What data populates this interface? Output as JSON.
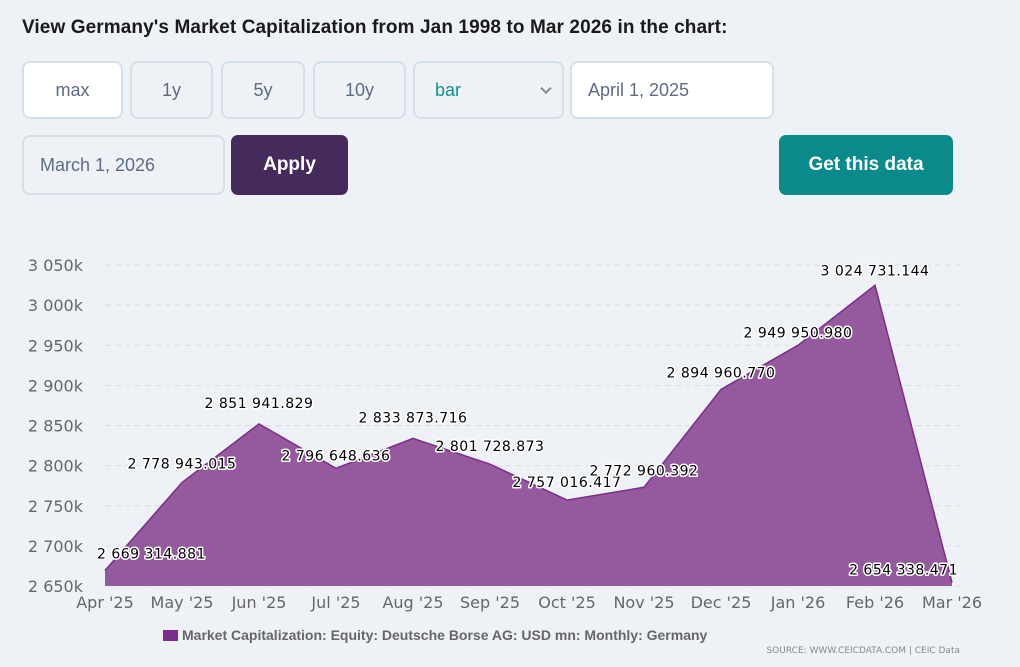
{
  "header": {
    "title": "View Germany's Market Capitalization from Jan 1998 to Mar 2026 in the chart:"
  },
  "controls": {
    "range_buttons": [
      {
        "label": "max",
        "active": true
      },
      {
        "label": "1y",
        "active": false
      },
      {
        "label": "5y",
        "active": false
      },
      {
        "label": "10y",
        "active": false
      }
    ],
    "chart_type_select": {
      "value": "bar",
      "icon": "chevron-down-icon"
    },
    "start_date": "April 1, 2025",
    "end_date": "March 1, 2026",
    "apply_label": "Apply",
    "get_data_label": "Get this data"
  },
  "colors": {
    "series_fill": "#95599d",
    "series_line": "#7b2d8b",
    "apply_bg": "#452b5c",
    "get_data_bg": "#0b8a8c",
    "accent_text": "#11908f"
  },
  "chart_data": {
    "type": "area",
    "title": "",
    "xlabel": "",
    "ylabel": "",
    "categories": [
      "Apr '25",
      "May '25",
      "Jun '25",
      "Jul '25",
      "Aug '25",
      "Sep '25",
      "Oct '25",
      "Nov '25",
      "Dec '25",
      "Jan '26",
      "Feb '26",
      "Mar '26"
    ],
    "series": [
      {
        "name": "Market Capitalization: Equity: Deutsche Borse AG: USD mn: Monthly: Germany",
        "values": [
          2669314.881,
          2778943.015,
          2851941.829,
          2796648.636,
          2833873.716,
          2801728.873,
          2757016.417,
          2772960.392,
          2894960.77,
          2949950.98,
          3024731.144,
          2654338.471
        ],
        "data_labels": [
          "2 669 314.881",
          "2 778 943.015",
          "2 851 941.829",
          "2 796 648.636",
          "2 833 873.716",
          "2 801 728.873",
          "2 757 016.417",
          "2 772 960.392",
          "2 894 960.770",
          "2 949 950.980",
          "3 024 731.144",
          "2 654 338.471"
        ]
      }
    ],
    "ylim": [
      2650000,
      3050000
    ],
    "y_ticks": [
      2650000,
      2700000,
      2750000,
      2800000,
      2850000,
      2900000,
      2950000,
      3000000,
      3050000
    ],
    "y_tick_labels": [
      "2 650k",
      "2 700k",
      "2 750k",
      "2 800k",
      "2 850k",
      "2 900k",
      "2 950k",
      "3 000k",
      "3 050k"
    ],
    "grid": true,
    "legend": {
      "position": "bottom-center",
      "label": "Market Capitalization: Equity: Deutsche Borse AG: USD mn: Monthly: Germany"
    },
    "source": "SOURCE: WWW.CEICDATA.COM | CEIC Data"
  }
}
